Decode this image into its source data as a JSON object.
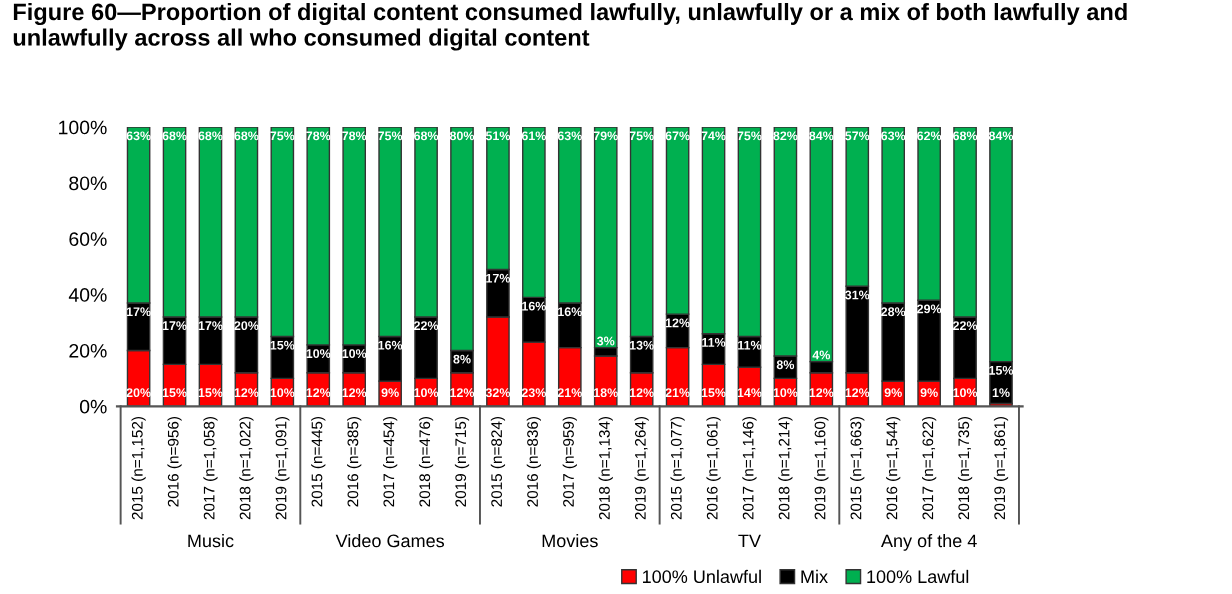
{
  "chart_data": {
    "type": "bar",
    "stacked": true,
    "title": "Figure 60—Proportion of digital content consumed lawfully, unlawfully or a mix of both lawfully and unlawfully across all who consumed digital content",
    "categories": [
      "2015 (n=1,152)",
      "2016 (n=956)",
      "2017 (n=1,058)",
      "2018 (n=1,022)",
      "2019 (n=1,091)",
      "2015 (n=445)",
      "2016 (n=385)",
      "2017 (n=454)",
      "2018 (n=476)",
      "2019 (n=715)",
      "2015 (n=824)",
      "2016 (n=836)",
      "2017 (n=959)",
      "2018 (n=1,134)",
      "2019 (n=1,264)",
      "2015 (n=1,077)",
      "2016 (n=1,061)",
      "2017 (n=1,146)",
      "2018 (n=1,214)",
      "2019 (n=1,160)",
      "2015 (n=1,663)",
      "2016 (n=1,544)",
      "2017 (n=1,622)",
      "2018 (n=1,735)",
      "2019 (n=1,861)"
    ],
    "annotations": [
      "Music",
      "Video Games",
      "Movies",
      "TV",
      "Any of the 4"
    ],
    "series": [
      {
        "name": "100% Unlawful",
        "color": "#ff0000",
        "values": [
          20,
          15,
          15,
          12,
          10,
          12,
          12,
          9,
          10,
          12,
          32,
          23,
          21,
          18,
          12,
          21,
          15,
          14,
          10,
          12,
          12,
          9,
          9,
          10,
          1
        ],
        "value_labels": [
          "20%",
          "15%",
          "15%",
          "12%",
          "10%",
          "12%",
          "12%",
          "9%",
          "10%",
          "12%",
          "32%",
          "23%",
          "21%",
          "18%",
          "12%",
          "21%",
          "15%",
          "14%",
          "10%",
          "12%",
          "12%",
          "9%",
          "9%",
          "10%",
          "1%"
        ]
      },
      {
        "name": "Mix",
        "color": "#000000",
        "values": [
          17,
          17,
          17,
          20,
          15,
          10,
          10,
          16,
          22,
          8,
          17,
          16,
          16,
          3,
          13,
          12,
          11,
          11,
          8,
          4,
          31,
          28,
          29,
          22,
          15
        ],
        "value_labels": [
          "17%",
          "17%",
          "17%",
          "20%",
          "15%",
          "10%",
          "10%",
          "16%",
          "22%",
          "8%",
          "17%",
          "16%",
          "16%",
          "3%",
          "13%",
          "12%",
          "11%",
          "11%",
          "8%",
          "4%",
          "31%",
          "28%",
          "29%",
          "22%",
          "15%"
        ]
      },
      {
        "name": "100% Lawful",
        "color": "#00b050",
        "values": [
          63,
          68,
          68,
          68,
          75,
          78,
          78,
          75,
          68,
          80,
          51,
          61,
          63,
          79,
          75,
          67,
          74,
          75,
          82,
          84,
          57,
          63,
          62,
          68,
          84
        ],
        "value_labels": [
          "63%",
          "68%",
          "68%",
          "68%",
          "75%",
          "78%",
          "78%",
          "75%",
          "68%",
          "80%",
          "51%",
          "61%",
          "63%",
          "79%",
          "75%",
          "67%",
          "74%",
          "75%",
          "82%",
          "84%",
          "57%",
          "63%",
          "62%",
          "68%",
          "84%"
        ]
      }
    ],
    "ylim": [
      0,
      100
    ],
    "yticks": [
      {
        "value": 0,
        "label": "0%"
      },
      {
        "value": 20,
        "label": "20%"
      },
      {
        "value": 40,
        "label": "40%"
      },
      {
        "value": 60,
        "label": "60%"
      },
      {
        "value": 80,
        "label": "80%"
      },
      {
        "value": 100,
        "label": "100%"
      }
    ],
    "legend": "bottom right",
    "grid": false
  }
}
